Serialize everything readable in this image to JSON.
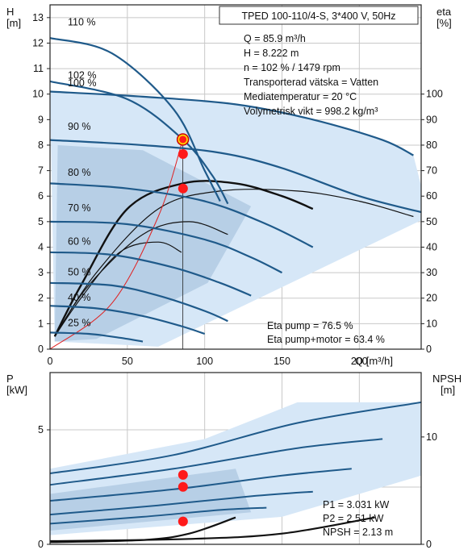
{
  "title": "TPED 100-110/4-S, 3*400 V, 50Hz",
  "colors": {
    "curve": "#1f5a8a",
    "band": "#d6e7f7",
    "band_dark": "#a9c4de",
    "grid": "#c8c8c8",
    "marker": "#ff1a1a",
    "marker_ring": "#ffd700",
    "system_curve": "#e02020"
  },
  "top_info": [
    "Q = 85.9 m³/h",
    "H = 8.222 m",
    "n = 102 % / 1479 rpm",
    "Transporterad vätska = Vatten",
    "Mediatemperatur = 20 °C",
    "Volymetrisk vikt = 998.2 kg/m³"
  ],
  "eta_info": [
    "Eta pump = 76.5 %",
    "Eta pump+motor = 63.4 %"
  ],
  "bottom_info": [
    "P1 = 3.031 kW",
    "P2 = 2.51 kW",
    "NPSH = 2.13 m"
  ],
  "chart_data": [
    {
      "type": "line",
      "axes": {
        "x": {
          "label": "Q [m³/h]",
          "range": [
            0,
            240
          ],
          "ticks": [
            "0",
            "50",
            "100",
            "150",
            "200"
          ]
        },
        "y_left": {
          "label_1": "H",
          "label_2": "[m]",
          "range": [
            0,
            13.5
          ],
          "ticks": [
            "0",
            "1",
            "2",
            "3",
            "4",
            "5",
            "6",
            "7",
            "8",
            "9",
            "10",
            "11",
            "12",
            "13"
          ]
        },
        "y_right": {
          "label_1": "eta",
          "label_2": "[%]",
          "range": [
            0,
            135
          ],
          "ticks": [
            "0",
            "10",
            "20",
            "30",
            "40",
            "50",
            "60",
            "70",
            "80",
            "90",
            "100"
          ]
        }
      },
      "grid": true,
      "speed_labels": [
        "110 %",
        "102 %",
        "100 %",
        "90 %",
        "80 %",
        "70 %",
        "60 %",
        "50 %",
        "40 %",
        "25 %"
      ],
      "series": [
        {
          "name": "110 %",
          "x": [
            0,
            40,
            80,
            100,
            110
          ],
          "y": [
            12.2,
            11.6,
            9.4,
            7.0,
            5.8
          ]
        },
        {
          "name": "102 %",
          "x": [
            0,
            50,
            85.9,
            105,
            115
          ],
          "y": [
            10.5,
            9.8,
            8.222,
            6.8,
            5.7
          ]
        },
        {
          "name": "100 %",
          "x": [
            0,
            60,
            120,
            170,
            215,
            235
          ],
          "y": [
            10.1,
            9.9,
            9.6,
            9.0,
            8.2,
            7.6
          ]
        },
        {
          "name": "90 %",
          "x": [
            0,
            60,
            110,
            150,
            200,
            245
          ],
          "y": [
            8.2,
            8.0,
            7.7,
            7.1,
            6.0,
            5.3
          ]
        },
        {
          "name": "80 %",
          "x": [
            0,
            50,
            100,
            140,
            170
          ],
          "y": [
            6.5,
            6.3,
            5.8,
            4.9,
            4.0
          ]
        },
        {
          "name": "70 %",
          "x": [
            0,
            50,
            100,
            130,
            150
          ],
          "y": [
            5.0,
            4.9,
            4.3,
            3.6,
            3.0
          ]
        },
        {
          "name": "60 %",
          "x": [
            0,
            40,
            80,
            110,
            130
          ],
          "y": [
            3.8,
            3.7,
            3.2,
            2.6,
            2.1
          ]
        },
        {
          "name": "50 %",
          "x": [
            0,
            40,
            70,
            100,
            115
          ],
          "y": [
            2.6,
            2.5,
            2.1,
            1.5,
            1.1
          ]
        },
        {
          "name": "40 %",
          "x": [
            0,
            30,
            60,
            85,
            100
          ],
          "y": [
            1.7,
            1.6,
            1.3,
            0.9,
            0.6
          ]
        },
        {
          "name": "25 %",
          "x": [
            0,
            25,
            45,
            60
          ],
          "y": [
            0.65,
            0.6,
            0.45,
            0.3
          ]
        }
      ],
      "eta_curves": [
        {
          "x": [
            3,
            20,
            50,
            86,
            120,
            150,
            170
          ],
          "y": [
            5,
            25,
            55,
            65,
            65,
            60,
            55
          ]
        },
        {
          "x": [
            3,
            30,
            70,
            110,
            160,
            200,
            235
          ],
          "y": [
            5,
            30,
            55,
            62,
            62,
            58,
            52
          ]
        },
        {
          "x": [
            3,
            25,
            60,
            90,
            115
          ],
          "y": [
            5,
            25,
            45,
            50,
            45
          ]
        },
        {
          "x": [
            3,
            20,
            45,
            70,
            85
          ],
          "y": [
            5,
            20,
            38,
            42,
            38
          ]
        }
      ],
      "operating_points": [
        {
          "x": 85.9,
          "y": 8.222,
          "ring": true
        },
        {
          "x": 86,
          "y": 7.65,
          "ring": false
        },
        {
          "x": 86,
          "y": 6.3,
          "ring": false
        }
      ]
    },
    {
      "type": "line",
      "axes": {
        "x": {
          "range": [
            0,
            240
          ]
        },
        "y_left": {
          "label_1": "P",
          "label_2": "[kW]",
          "range": [
            0,
            7.5
          ],
          "ticks": [
            "0",
            "5"
          ]
        },
        "y_right": {
          "label_1": "NPSH",
          "label_2": "[m]",
          "range": [
            0,
            16
          ],
          "ticks": [
            "0",
            "10"
          ]
        }
      },
      "grid": true,
      "series": [
        {
          "x": [
            0,
            80,
            160,
            240
          ],
          "y": [
            3.1,
            3.9,
            5.3,
            6.2
          ]
        },
        {
          "x": [
            0,
            80,
            160,
            215
          ],
          "y": [
            2.6,
            3.3,
            4.2,
            4.6
          ]
        },
        {
          "x": [
            0,
            80,
            150,
            195
          ],
          "y": [
            1.9,
            2.4,
            3.0,
            3.3
          ]
        },
        {
          "x": [
            0,
            70,
            130,
            170
          ],
          "y": [
            1.3,
            1.7,
            2.1,
            2.3
          ]
        },
        {
          "x": [
            0,
            60,
            110,
            140
          ],
          "y": [
            0.9,
            1.2,
            1.5,
            1.6
          ]
        }
      ],
      "npsh_curves": [
        {
          "x": [
            0,
            60,
            90,
            120
          ],
          "y": [
            0.2,
            0.4,
            1.0,
            2.5
          ]
        },
        {
          "x": [
            0,
            90,
            150,
            210
          ],
          "y": [
            0.3,
            0.5,
            1.0,
            2.5
          ]
        }
      ],
      "operating_points": [
        {
          "x": 86,
          "y": 3.031
        },
        {
          "x": 86,
          "y": 2.51
        },
        {
          "x": 86,
          "y": 1.0
        }
      ]
    }
  ]
}
